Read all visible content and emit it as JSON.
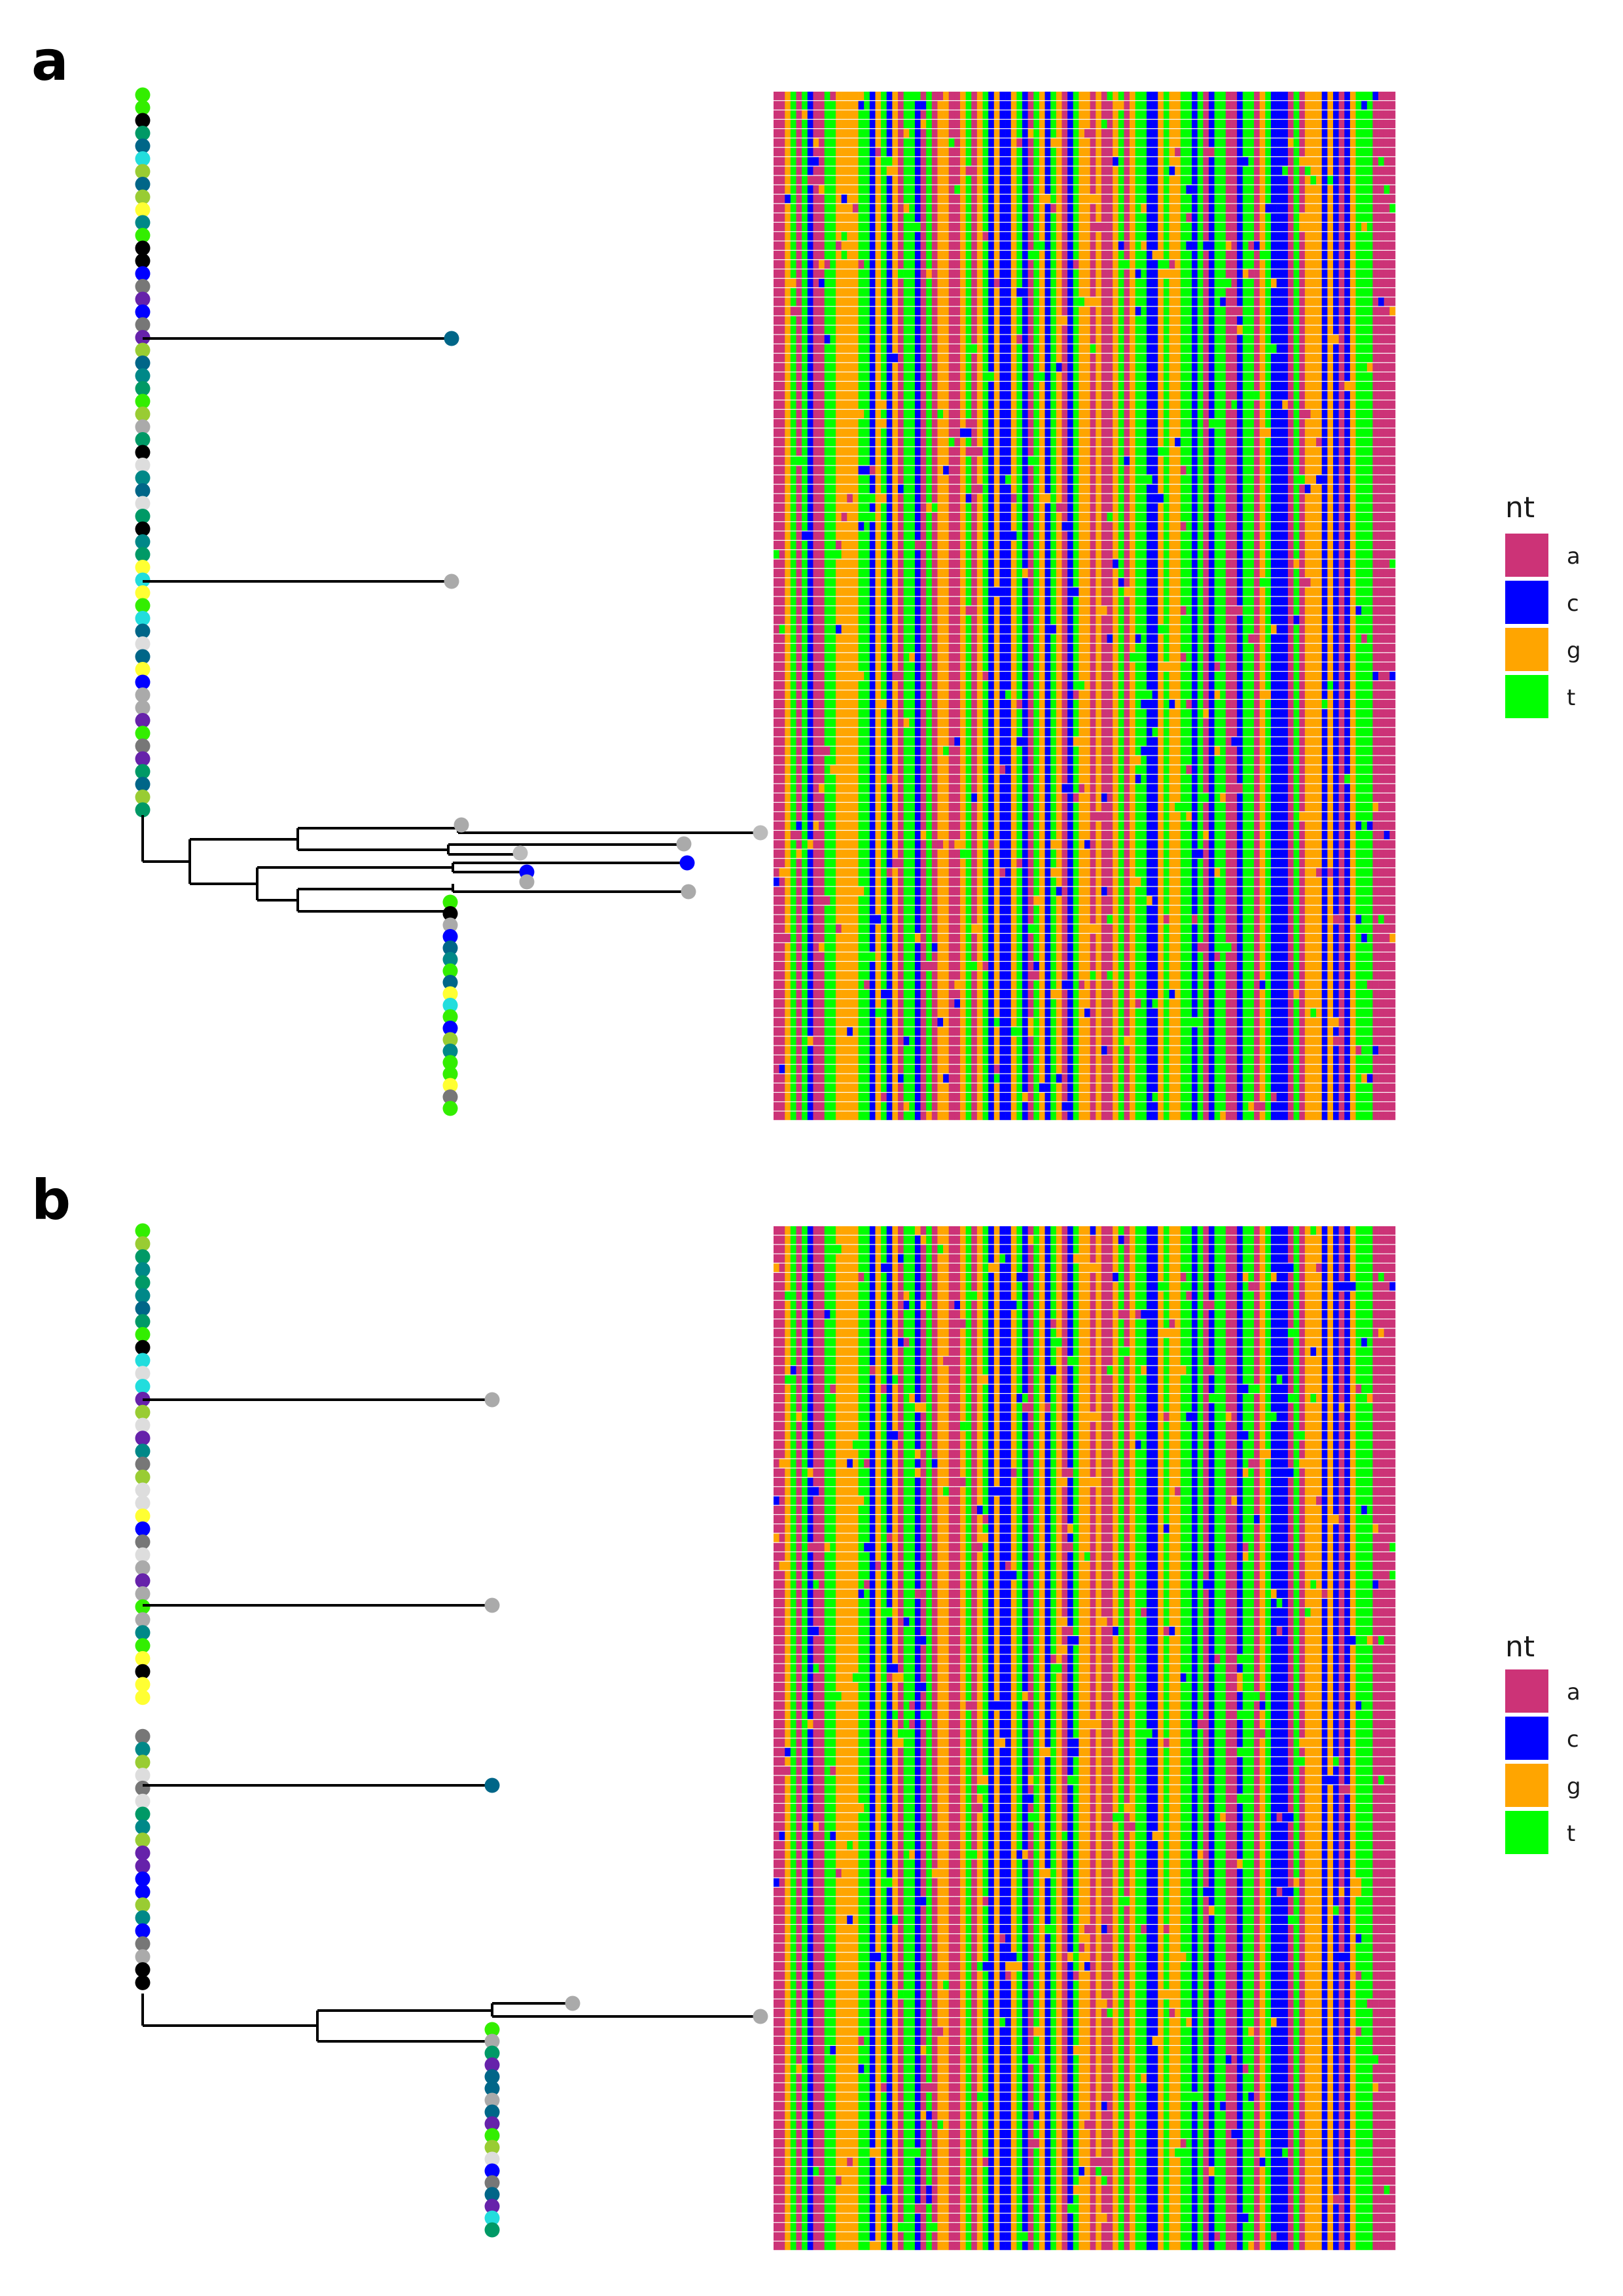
{
  "panels": [
    {
      "label": "a",
      "legend_title": "nt"
    },
    {
      "label": "b",
      "legend_title": "nt"
    }
  ],
  "legend": [
    {
      "label": "a",
      "color": "#CC3377"
    },
    {
      "label": "c",
      "color": "#0000FF"
    },
    {
      "label": "g",
      "color": "#FFA500"
    },
    {
      "label": "t",
      "color": "#00FF00"
    }
  ],
  "alignment": {
    "rows": 110,
    "columns": 110
  },
  "tip_palette": [
    "#009966",
    "#99CC33",
    "#FFFF33",
    "#33EE00",
    "#000000",
    "#6622AA",
    "#0000FF",
    "#AAAAAA",
    "#777777",
    "#006688",
    "#008888",
    "#22DDDD",
    "#DDDDDD"
  ]
}
